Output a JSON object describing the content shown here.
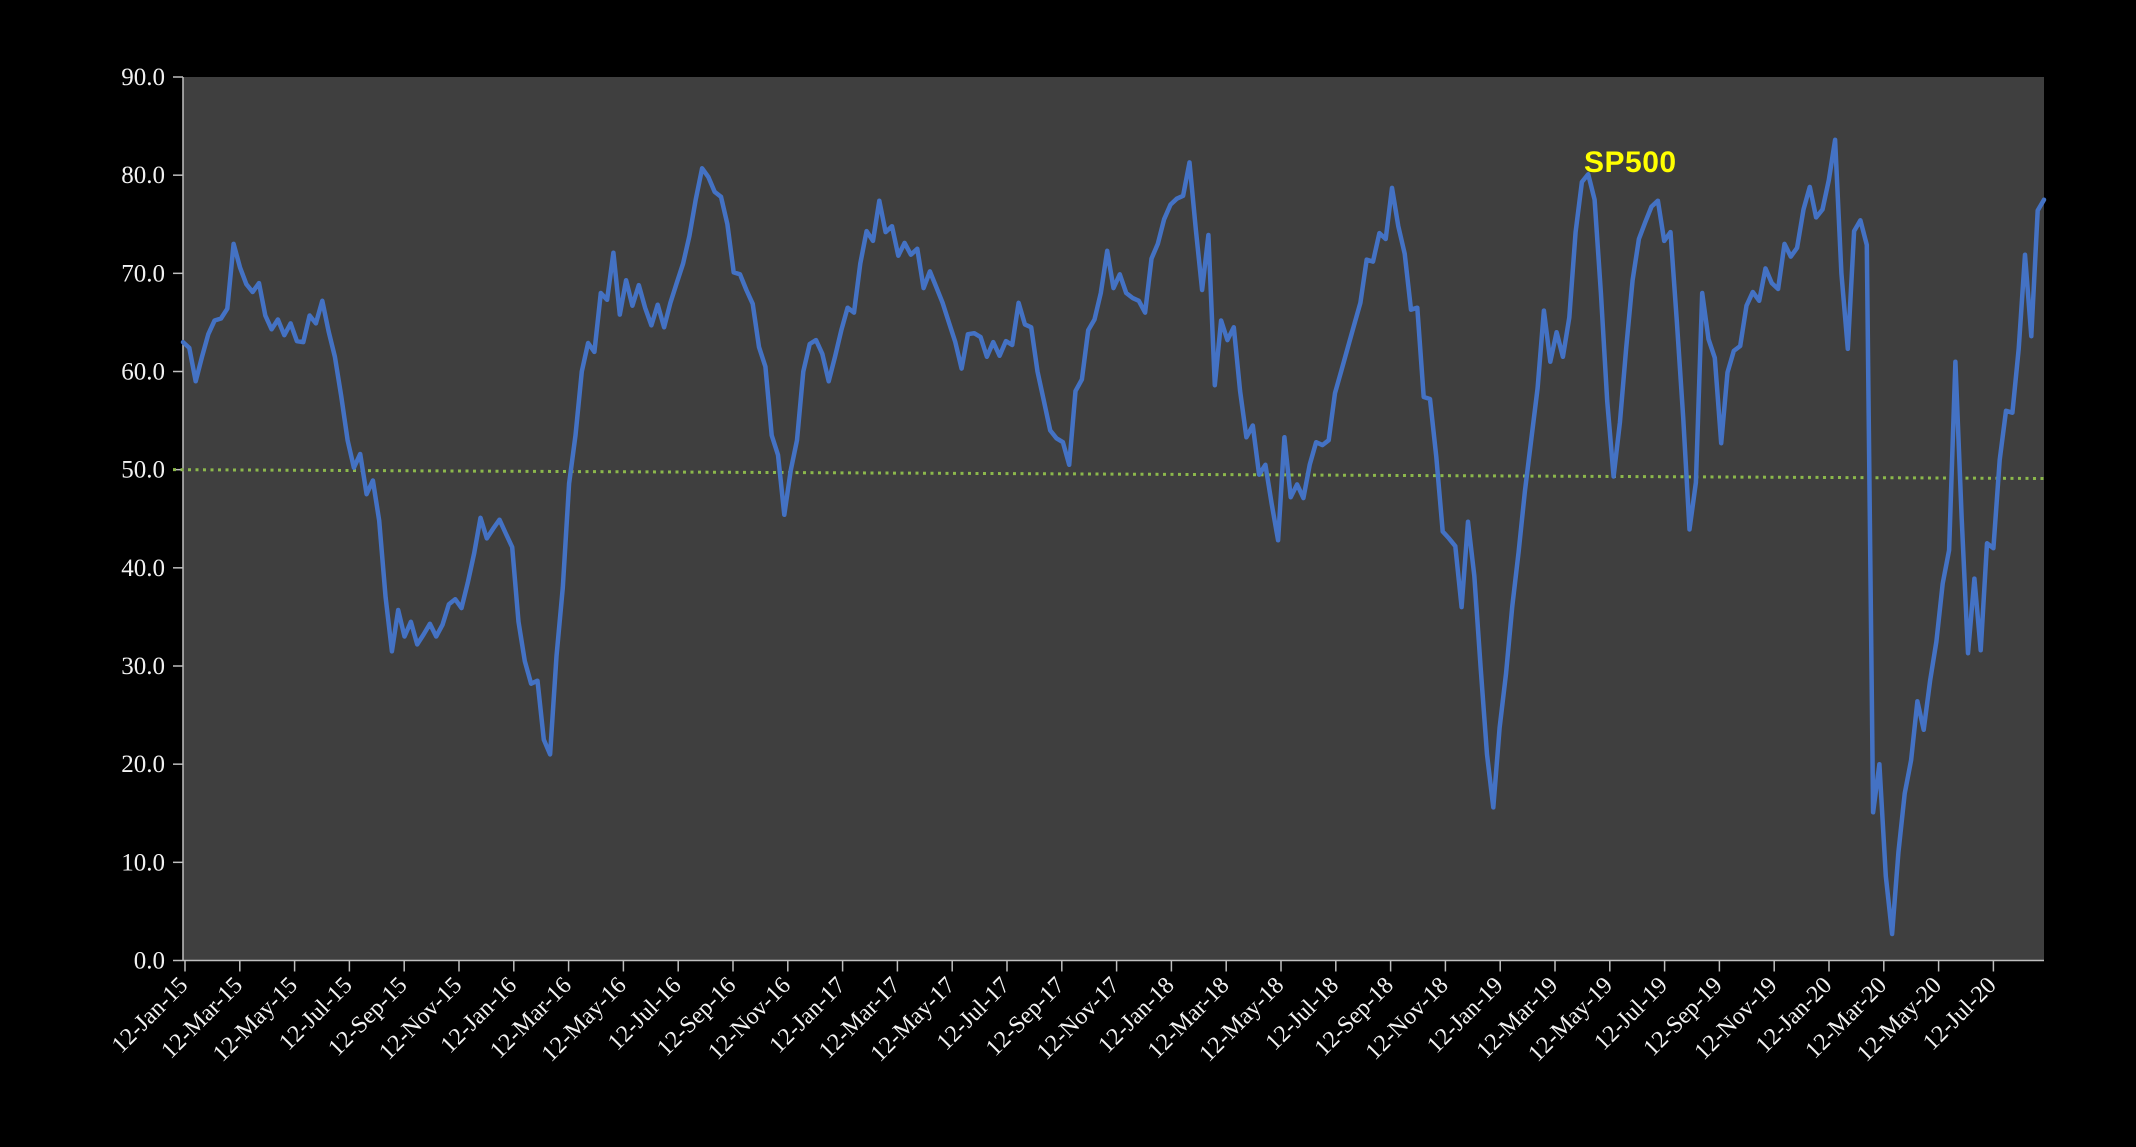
{
  "chart_data": {
    "type": "line",
    "title": "",
    "xlabel": "",
    "ylabel": "",
    "ylim": [
      0,
      90
    ],
    "y_tick_labels": [
      "0.0",
      "10.0",
      "20.0",
      "30.0",
      "40.0",
      "50.0",
      "60.0",
      "70.0",
      "80.0",
      "90.0"
    ],
    "x_tick_labels": [
      "12-Jan-15",
      "12-Mar-15",
      "12-May-15",
      "12-Jul-15",
      "12-Sep-15",
      "12-Nov-15",
      "12-Jan-16",
      "12-Mar-16",
      "12-May-16",
      "12-Jul-16",
      "12-Sep-16",
      "12-Nov-16",
      "12-Jan-17",
      "12-Mar-17",
      "12-May-17",
      "12-Jul-17",
      "12-Sep-17",
      "12-Nov-17",
      "12-Jan-18",
      "12-Mar-18",
      "12-May-18",
      "12-Jul-18",
      "12-Sep-18",
      "12-Nov-18",
      "12-Jan-19",
      "12-Mar-19",
      "12-May-19",
      "12-Jul-19",
      "12-Sep-19",
      "12-Nov-19",
      "12-Jan-20",
      "12-Mar-20",
      "12-May-20",
      "12-Jul-20"
    ],
    "grid": false,
    "legend_position": "inside-top-right",
    "reference_line": {
      "start_value": 50.0,
      "end_value": 49.1,
      "color": "#8cb84c",
      "style": "dotted"
    },
    "series": [
      {
        "name": "SP500",
        "color": "#4472c4",
        "label_color": "#ffff00",
        "values": [
          63.0,
          62.4,
          59.0,
          61.5,
          63.8,
          65.2,
          65.4,
          66.4,
          73.0,
          70.6,
          68.9,
          68.1,
          69.0,
          65.7,
          64.3,
          65.3,
          63.7,
          64.9,
          63.1,
          63.0,
          65.7,
          64.9,
          67.2,
          64.1,
          61.5,
          57.5,
          53.0,
          50.2,
          51.6,
          47.5,
          48.9,
          44.8,
          37.0,
          31.5,
          35.7,
          33.0,
          34.5,
          32.2,
          33.2,
          34.3,
          33.0,
          34.2,
          36.3,
          36.8,
          35.9,
          38.5,
          41.5,
          45.1,
          43.0,
          44.0,
          44.9,
          43.5,
          42.1,
          34.5,
          30.5,
          28.2,
          28.5,
          22.5,
          21.0,
          31.0,
          38.0,
          48.6,
          53.5,
          60.0,
          62.9,
          62.0,
          68.0,
          67.3,
          72.1,
          65.8,
          69.3,
          66.7,
          68.8,
          66.5,
          64.7,
          66.8,
          64.5,
          67.0,
          69.0,
          71.0,
          73.8,
          77.5,
          80.7,
          79.8,
          78.3,
          77.8,
          75.0,
          70.1,
          69.9,
          68.3,
          66.9,
          62.5,
          60.5,
          53.5,
          51.5,
          45.4,
          49.9,
          53.0,
          60.0,
          62.8,
          63.2,
          61.8,
          59.0,
          61.5,
          64.2,
          66.5,
          66.0,
          71.0,
          74.3,
          73.3,
          77.4,
          74.2,
          74.8,
          71.8,
          73.1,
          71.9,
          72.5,
          68.5,
          70.2,
          68.6,
          67.0,
          65.0,
          63.0,
          60.3,
          63.8,
          63.9,
          63.5,
          61.5,
          63.0,
          61.6,
          63.1,
          62.7,
          67.0,
          64.8,
          64.5,
          60.0,
          57.0,
          54.0,
          53.2,
          52.8,
          50.5,
          58.0,
          59.2,
          64.2,
          65.3,
          68.0,
          72.3,
          68.5,
          69.9,
          68.0,
          67.5,
          67.2,
          66.0,
          71.5,
          73.0,
          75.5,
          77.0,
          77.6,
          77.9,
          81.3,
          74.5,
          68.3,
          73.9,
          58.6,
          65.2,
          63.2,
          64.5,
          58.0,
          53.3,
          54.5,
          49.5,
          50.5,
          46.5,
          42.8,
          53.3,
          47.2,
          48.5,
          47.1,
          50.5,
          52.8,
          52.5,
          53.0,
          57.8,
          60.1,
          62.4,
          64.7,
          67.0,
          71.4,
          71.2,
          74.1,
          73.5,
          78.7,
          74.8,
          72.0,
          66.3,
          66.5,
          57.4,
          57.2,
          51.3,
          43.7,
          43.0,
          42.2,
          36.0,
          44.7,
          39.2,
          29.9,
          21.0,
          15.6,
          23.7,
          29.2,
          36.1,
          41.6,
          47.8,
          53.1,
          58.3,
          66.2,
          61.0,
          64.0,
          61.5,
          65.5,
          74.2,
          79.3,
          80.1,
          77.5,
          68.0,
          57.0,
          49.3,
          54.8,
          62.4,
          69.3,
          73.5,
          75.2,
          76.8,
          77.4,
          73.3,
          74.2,
          65.0,
          55.3,
          43.9,
          48.7,
          68.0,
          63.3,
          61.4,
          52.7,
          59.9,
          62.1,
          62.6,
          66.7,
          68.1,
          67.2,
          70.5,
          69.0,
          68.4,
          73.0,
          71.7,
          72.6,
          76.5,
          78.8,
          75.7,
          76.5,
          79.5,
          83.6,
          70.0,
          62.3,
          74.3,
          75.4,
          72.9,
          15.1,
          20.0,
          8.6,
          2.7,
          11.0,
          17.0,
          20.4,
          26.4,
          23.5,
          28.5,
          32.5,
          38.4,
          41.8,
          61.0,
          45.0,
          31.3,
          38.9,
          31.6,
          42.5,
          42.0,
          51.0,
          56.0,
          55.8,
          62.3,
          71.9,
          63.6,
          76.4,
          77.5
        ]
      }
    ],
    "colors": {
      "outer_background": "#000000",
      "plot_background": "#3f3f3f",
      "axis": "#bfbfbf",
      "tick_label": "#f2f2f2"
    }
  }
}
